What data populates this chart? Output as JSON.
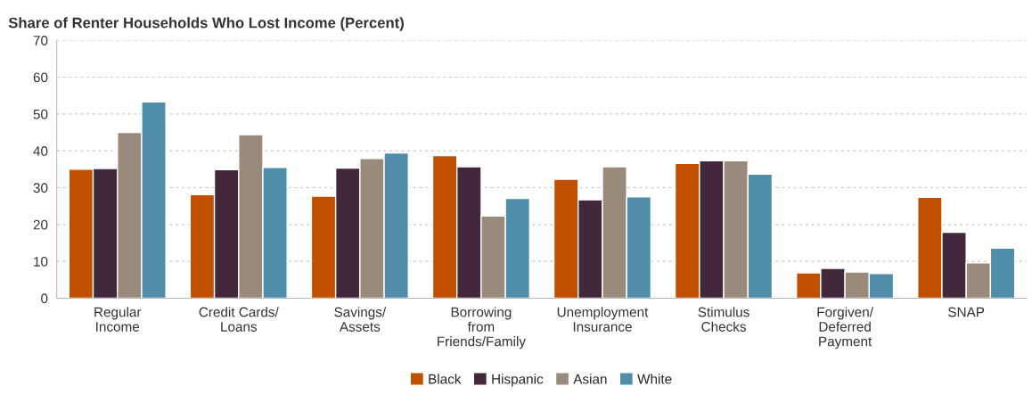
{
  "chart_data": {
    "type": "bar",
    "title": "Share of Renter Households Who Lost Income (Percent)",
    "categories": [
      "Regular\nIncome",
      "Credit Cards/\nLoans",
      "Savings/\nAssets",
      "Borrowing\nfrom\nFriends/Family",
      "Unemployment\nInsurance",
      "Stimulus\nChecks",
      "Forgiven/\nDeferred\nPayment",
      "SNAP"
    ],
    "series": [
      {
        "name": "Black",
        "color": "#c04f00",
        "values": [
          35.0,
          28.1,
          27.7,
          38.7,
          32.3,
          36.6,
          6.9,
          27.4
        ]
      },
      {
        "name": "Hispanic",
        "color": "#43283c",
        "values": [
          35.2,
          34.9,
          35.3,
          35.7,
          26.7,
          37.3,
          8.1,
          17.9
        ]
      },
      {
        "name": "Asian",
        "color": "#998a7c",
        "values": [
          45.0,
          44.4,
          37.9,
          22.3,
          35.7,
          37.3,
          7.1,
          9.6
        ]
      },
      {
        "name": "White",
        "color": "#4f8da8",
        "values": [
          53.3,
          35.5,
          39.4,
          27.1,
          27.5,
          33.7,
          6.7,
          13.6
        ]
      }
    ],
    "ylim": [
      0,
      70
    ],
    "yticks": [
      0,
      10,
      20,
      30,
      40,
      50,
      60,
      70
    ],
    "grid": "y",
    "legend": "bottom"
  }
}
